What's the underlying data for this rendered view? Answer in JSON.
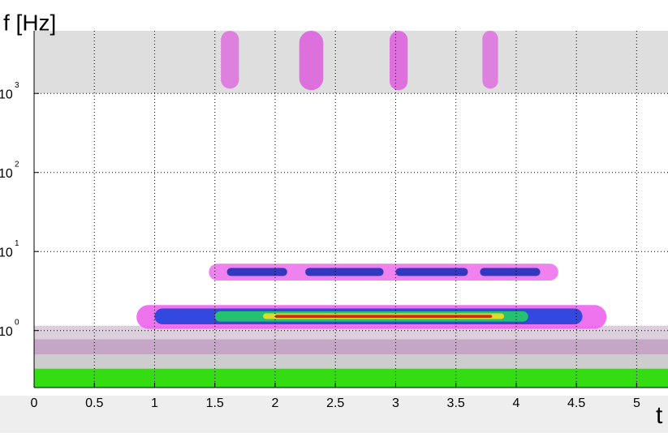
{
  "chart_data": {
    "type": "spectrogram",
    "xlabel": "t",
    "ylabel": "f [Hz]",
    "xlim": [
      0,
      5.26
    ],
    "ylim": [
      0.19,
      6200
    ],
    "ylog": true,
    "grid": true,
    "xticks": [
      0,
      0.5,
      1,
      1.5,
      2,
      2.5,
      3,
      3.5,
      4,
      4.5,
      5
    ],
    "yticks": [
      {
        "value": 1,
        "label": "10",
        "exponent": "0"
      },
      {
        "value": 10,
        "label": "10",
        "exponent": "1"
      },
      {
        "value": 100,
        "label": "10",
        "exponent": "2"
      },
      {
        "value": 1000,
        "label": "10",
        "exponent": "3"
      }
    ],
    "features": [
      {
        "t": [
          0,
          5.26
        ],
        "f": [
          1000,
          6200
        ],
        "color": "#dedede",
        "round": false
      },
      {
        "t": [
          0,
          5.26
        ],
        "f": [
          0.19,
          0.33
        ],
        "color": "#33dd11",
        "round": false
      },
      {
        "t": [
          0,
          5.26
        ],
        "f": [
          0.33,
          0.5
        ],
        "color": "#cdcdcd",
        "round": false
      },
      {
        "t": [
          0,
          5.26
        ],
        "f": [
          0.5,
          0.78
        ],
        "color": "#c6a6c6",
        "round": false
      },
      {
        "t": [
          0,
          5.26
        ],
        "f": [
          0.78,
          1.15
        ],
        "color": "#dccfdc",
        "round": false
      },
      {
        "t": [
          0.85,
          4.75
        ],
        "f": [
          1.05,
          2.1
        ],
        "color": "#ee66ee",
        "round": true
      },
      {
        "t": [
          1.0,
          4.55
        ],
        "f": [
          1.2,
          1.9
        ],
        "color": "#2244dd",
        "round": true
      },
      {
        "t": [
          1.5,
          4.1
        ],
        "f": [
          1.3,
          1.75
        ],
        "color": "#22cc66",
        "round": true
      },
      {
        "t": [
          1.9,
          3.9
        ],
        "f": [
          1.4,
          1.65
        ],
        "color": "#eedd22",
        "round": true
      },
      {
        "t": [
          2.0,
          3.8
        ],
        "f": [
          1.45,
          1.58
        ],
        "color": "#dd1111",
        "round": true
      },
      {
        "t": [
          1.45,
          4.35
        ],
        "f": [
          4.3,
          7
        ],
        "color": "#ee77ee",
        "round": true
      },
      {
        "t": [
          1.6,
          2.1
        ],
        "f": [
          4.9,
          6.2
        ],
        "color": "#2233bb",
        "round": true
      },
      {
        "t": [
          2.25,
          2.9
        ],
        "f": [
          4.9,
          6.2
        ],
        "color": "#2233bb",
        "round": true
      },
      {
        "t": [
          3.0,
          3.6
        ],
        "f": [
          4.9,
          6.2
        ],
        "color": "#2233bb",
        "round": true
      },
      {
        "t": [
          3.7,
          4.2
        ],
        "f": [
          4.9,
          6.2
        ],
        "color": "#2233bb",
        "round": true
      },
      {
        "t": [
          1.55,
          1.7
        ],
        "f": [
          1150,
          6200
        ],
        "color": "#dd77dd",
        "round": true
      },
      {
        "t": [
          2.2,
          2.4
        ],
        "f": [
          1100,
          6200
        ],
        "color": "#dd66dd",
        "round": true
      },
      {
        "t": [
          2.95,
          3.1
        ],
        "f": [
          1100,
          6200
        ],
        "color": "#dd66dd",
        "round": true
      },
      {
        "t": [
          3.72,
          3.85
        ],
        "f": [
          1150,
          6200
        ],
        "color": "#dd77dd",
        "round": true
      }
    ]
  }
}
